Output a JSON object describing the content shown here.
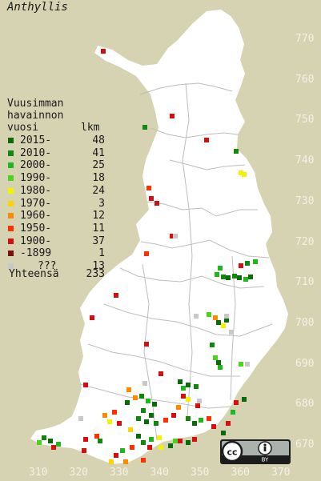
{
  "title": "Anthyllis",
  "legend": {
    "heading_line1": "Vuusimman",
    "heading_line2": "havainnon",
    "heading_line3": "vuosi",
    "count_heading": "lkm",
    "rows": [
      {
        "label": "2015-",
        "count": "48",
        "color": "#0a6b0a"
      },
      {
        "label": "2010-",
        "count": "41",
        "color": "#10880e"
      },
      {
        "label": "2000-",
        "count": "25",
        "color": "#1fb81c"
      },
      {
        "label": "1990-",
        "count": "18",
        "color": "#4ad41e"
      },
      {
        "label": "1980-",
        "count": "24",
        "color": "#f3f300"
      },
      {
        "label": "1970-",
        "count": "3",
        "color": "#ffd400"
      },
      {
        "label": "1960-",
        "count": "12",
        "color": "#ff8a00"
      },
      {
        "label": "1950-",
        "count": "11",
        "color": "#ff3000"
      },
      {
        "label": "1900-",
        "count": "37",
        "color": "#d21010"
      },
      {
        "label": "-1899",
        "count": "1",
        "color": "#7a1010"
      },
      {
        "label": "???",
        "count": "13",
        "color": "#c8c8c8"
      }
    ],
    "total_label": "Yhteensä",
    "total_count": "233"
  },
  "grid_y_labels": [
    "770",
    "760",
    "750",
    "740",
    "730",
    "720",
    "710",
    "700",
    "690",
    "680",
    "670"
  ],
  "grid_x_labels": [
    "310",
    "320",
    "330",
    "340",
    "350",
    "360",
    "370"
  ],
  "license_badge": {
    "icons": [
      "creative-commons-icon",
      "attribution-icon"
    ],
    "text": "BY"
  }
}
